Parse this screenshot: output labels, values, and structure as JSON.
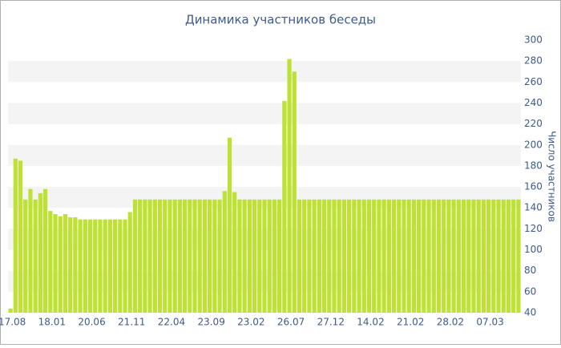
{
  "chart_data": {
    "type": "bar",
    "title": "Динамика участников беседы",
    "y_axis_label": "Число участников",
    "categories": [
      "17.08",
      null,
      null,
      null,
      null,
      null,
      null,
      null,
      "18.01",
      null,
      null,
      null,
      null,
      null,
      null,
      null,
      "20.06",
      null,
      null,
      null,
      null,
      null,
      null,
      null,
      "21.11",
      null,
      null,
      null,
      null,
      null,
      null,
      null,
      "22.04",
      null,
      null,
      null,
      null,
      null,
      null,
      null,
      "23.09",
      null,
      null,
      null,
      null,
      null,
      null,
      null,
      "23.02",
      null,
      null,
      null,
      null,
      null,
      null,
      null,
      "26.07",
      null,
      null,
      null,
      null,
      null,
      null,
      null,
      "27.12",
      null,
      null,
      null,
      null,
      null,
      null,
      null,
      "14.02",
      null,
      null,
      null,
      null,
      null,
      null,
      null,
      "21.02",
      null,
      null,
      null,
      null,
      null,
      null,
      null,
      "28.02",
      null,
      null,
      null,
      null,
      null,
      null,
      null,
      "07.03",
      null,
      null,
      null,
      null,
      null,
      null
    ],
    "values": [
      44,
      187,
      185,
      148,
      158,
      148,
      154,
      158,
      137,
      134,
      132,
      134,
      131,
      131,
      129,
      129,
      129,
      129,
      129,
      129,
      129,
      129,
      129,
      129,
      136,
      148,
      148,
      148,
      148,
      148,
      148,
      148,
      148,
      148,
      148,
      148,
      148,
      148,
      148,
      148,
      148,
      148,
      148,
      156,
      207,
      155,
      148,
      148,
      148,
      148,
      148,
      148,
      148,
      148,
      148,
      242,
      282,
      270,
      148,
      148,
      148,
      148,
      148,
      148,
      148,
      148,
      148,
      148,
      148,
      148,
      148,
      148,
      148,
      148,
      148,
      148,
      148,
      148,
      148,
      148,
      148,
      148,
      148,
      148,
      148,
      148,
      148,
      148,
      148,
      148,
      148,
      148,
      148,
      148,
      148,
      148,
      148,
      148,
      148,
      148,
      148,
      148,
      148
    ],
    "color": "#bde234",
    "ylim": [
      40,
      300
    ],
    "yticks": [
      40,
      60,
      80,
      100,
      120,
      140,
      160,
      180,
      200,
      220,
      240,
      260,
      280,
      300
    ],
    "y_axis_side": "right",
    "grid": "alternating-bands"
  }
}
